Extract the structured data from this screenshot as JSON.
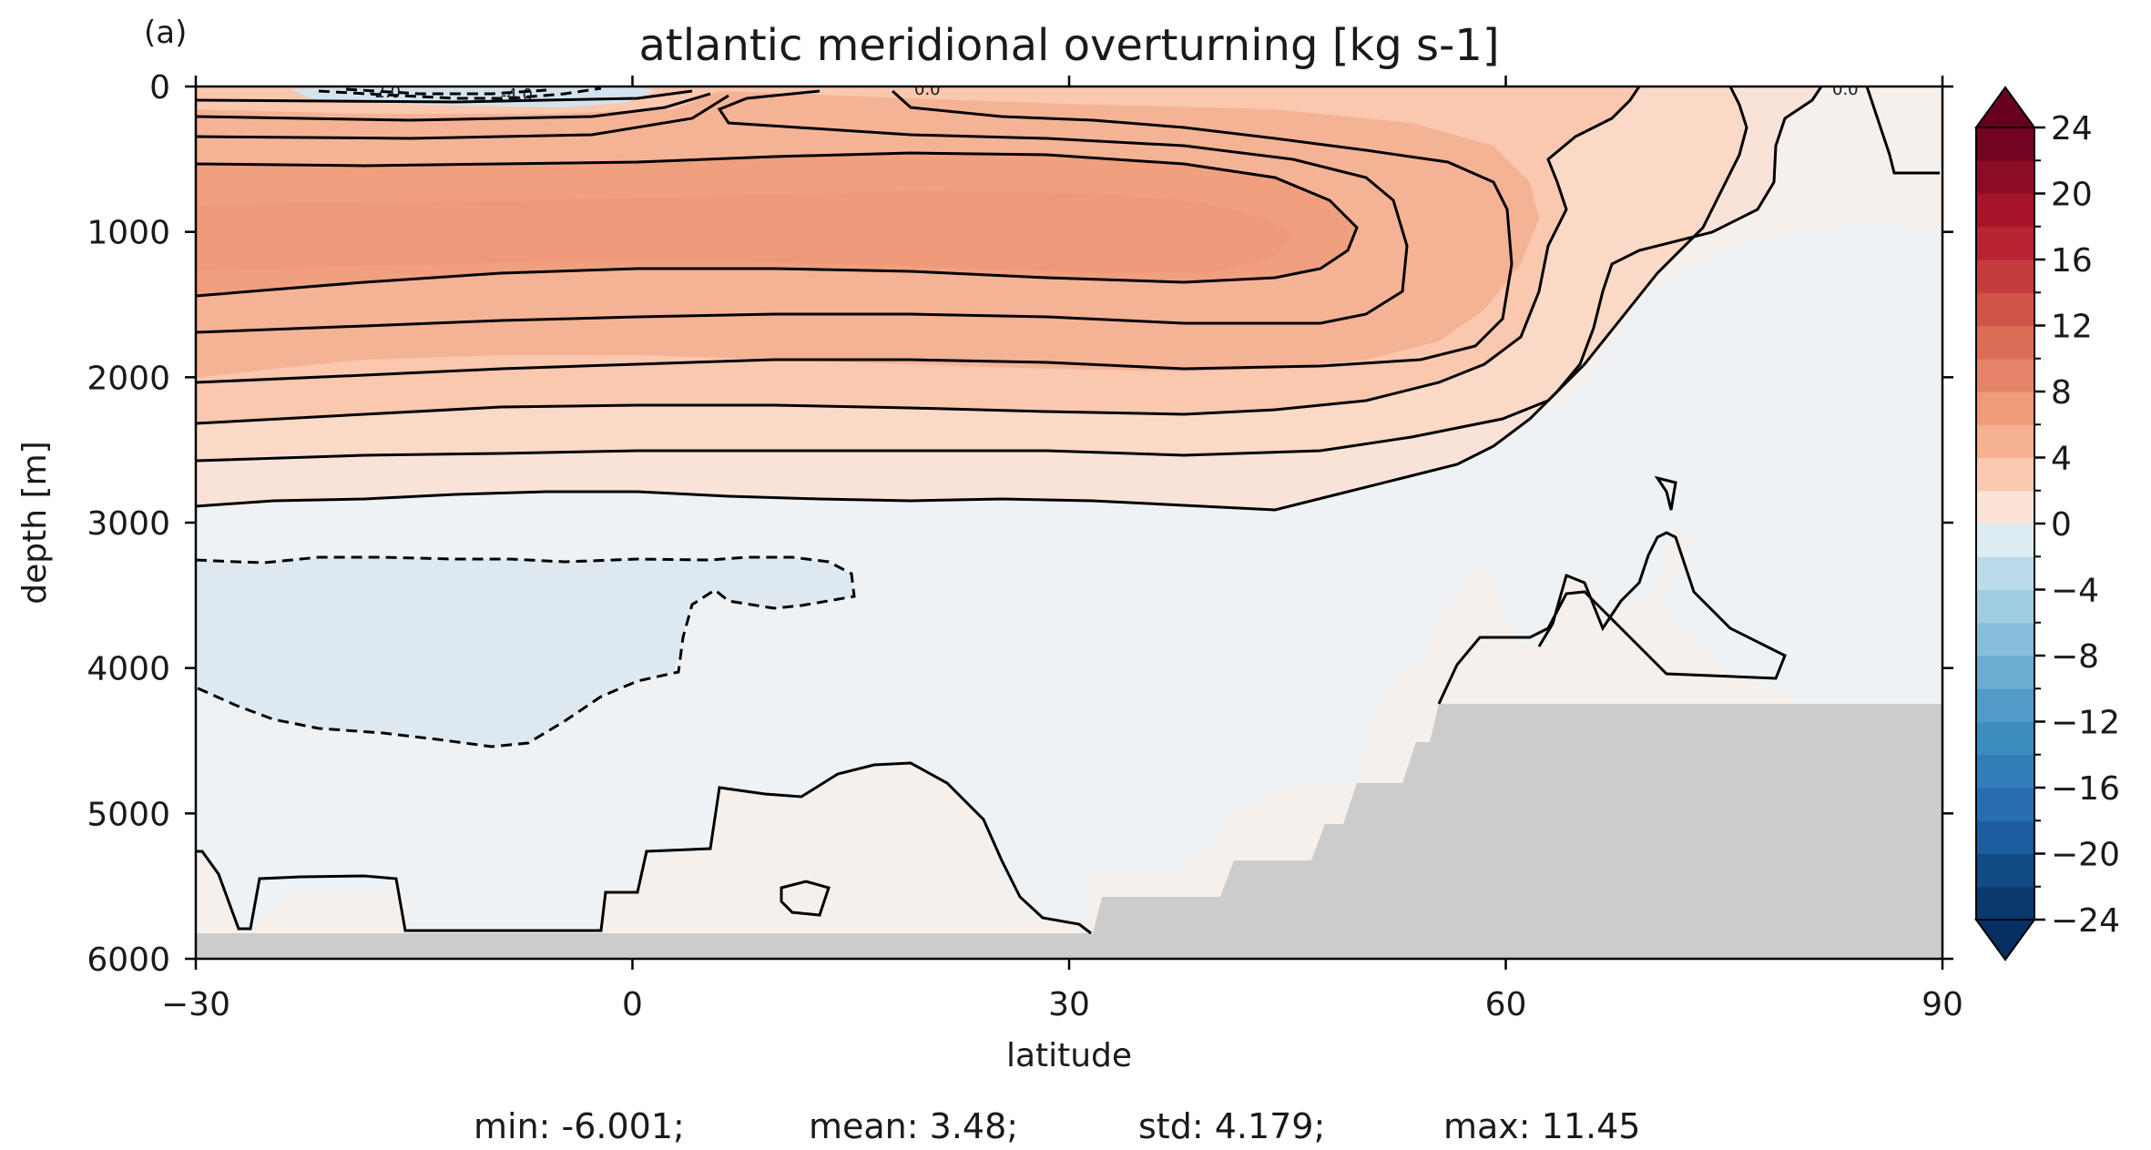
{
  "panel_label": "(a)",
  "chart_data": {
    "type": "contour",
    "title": "atlantic meridional overturning [kg s-1]",
    "xlabel": "latitude",
    "ylabel": "depth [m]",
    "xlim": [
      -30,
      90
    ],
    "ylim": [
      6000,
      0
    ],
    "x_ticks": [
      -30,
      0,
      30,
      60,
      90
    ],
    "x_tick_labels": [
      "−30",
      "0",
      "30",
      "60",
      "90"
    ],
    "y_ticks": [
      0,
      1000,
      2000,
      3000,
      4000,
      5000,
      6000
    ],
    "y_tick_labels": [
      "0",
      "1000",
      "2000",
      "3000",
      "4000",
      "5000",
      "6000"
    ],
    "colorbar": {
      "min": -24,
      "max": 24,
      "step": 2,
      "extend": "both",
      "ticks": [
        24,
        20,
        16,
        12,
        8,
        4,
        0,
        -4,
        -8,
        -12,
        -16,
        -20,
        -24
      ],
      "tick_labels": [
        "24",
        "20",
        "16",
        "12",
        "8",
        "4",
        "0",
        "−4",
        "−8",
        "−12",
        "−16",
        "−20",
        "−24"
      ]
    },
    "contour_labels": [
      "-2.0",
      "-4.0",
      "0.0",
      "0.0"
    ],
    "stats": {
      "min": "min: -6.001;",
      "mean": "mean: 3.48;",
      "std": "std: 4.179;",
      "max": "max: 11.45"
    },
    "colors": {
      "positive_max": "#67001f",
      "negative_max": "#053061",
      "land": "#cccccc",
      "near_zero_pos": "#f6f0ec",
      "near_zero_neg": "#eef2f5"
    }
  }
}
